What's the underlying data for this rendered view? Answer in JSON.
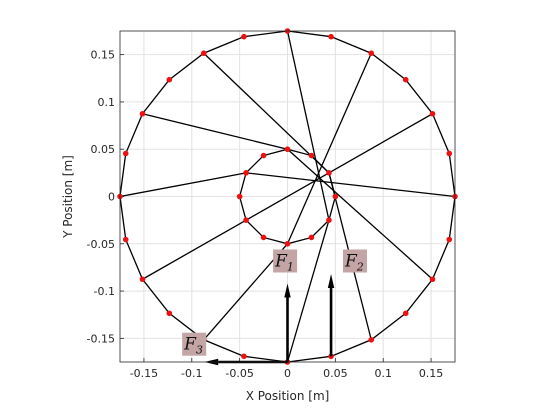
{
  "chart_data": {
    "type": "scatter",
    "title": "",
    "xlabel": "X Position [m]",
    "ylabel": "Y Position [m]",
    "xlim": [
      -0.175,
      0.175
    ],
    "ylim": [
      -0.175,
      0.175
    ],
    "grid": true,
    "x_ticks": [
      -0.15,
      -0.1,
      -0.05,
      0,
      0.05,
      0.1,
      0.15
    ],
    "x_tick_labels": [
      "-0.15",
      "-0.1",
      "-0.05",
      "0",
      "0.05",
      "0.1",
      "0.15"
    ],
    "y_ticks": [
      0.15,
      0.1,
      0.05,
      0,
      -0.05,
      -0.1,
      -0.15
    ],
    "y_tick_labels": [
      "0.15",
      "0.1",
      "0.05",
      "0",
      "-0.05",
      "-0.1",
      "-0.15"
    ],
    "outer_ring": {
      "x": [
        0,
        0.0455,
        0.0875,
        0.1235,
        0.1515,
        0.169,
        0.175,
        0.169,
        0.1515,
        0.1235,
        0.0875,
        0.0455,
        0,
        -0.0455,
        -0.0875,
        -0.1235,
        -0.1515,
        -0.169,
        -0.175,
        -0.169,
        -0.1515,
        -0.1235,
        -0.0875,
        -0.0455
      ],
      "y": [
        0.175,
        0.169,
        0.1515,
        0.1235,
        0.0875,
        0.0455,
        0,
        -0.0455,
        -0.0875,
        -0.1235,
        -0.1515,
        -0.169,
        -0.175,
        -0.169,
        -0.1515,
        -0.1235,
        -0.0875,
        -0.0455,
        0,
        0.0455,
        0.0875,
        0.1235,
        0.1515,
        0.169
      ]
    },
    "inner_ring": {
      "x": [
        0,
        0.025,
        0.0433,
        0.05,
        0.0433,
        0.025,
        0,
        -0.025,
        -0.0433,
        -0.05,
        -0.0433,
        -0.025
      ],
      "y": [
        0.05,
        0.0433,
        0.025,
        0,
        -0.025,
        -0.0433,
        -0.05,
        -0.0433,
        -0.025,
        0,
        0.025,
        0.0433
      ]
    },
    "spokes": [
      {
        "outer": 22,
        "inner": 2
      },
      {
        "outer": 20,
        "inner": 0
      },
      {
        "outer": 18,
        "inner": 10
      },
      {
        "outer": 16,
        "inner": 8
      },
      {
        "outer": 14,
        "inner": 6
      },
      {
        "outer": 12,
        "inner": 4
      },
      {
        "outer": 10,
        "inner": 2
      },
      {
        "outer": 8,
        "inner": 0
      },
      {
        "outer": 6,
        "inner": 10
      },
      {
        "outer": 4,
        "inner": 8
      },
      {
        "outer": 2,
        "inner": 6
      },
      {
        "outer": 0,
        "inner": 4
      }
    ],
    "forces": [
      {
        "label": "F",
        "sub": "1",
        "from": [
          0,
          -0.175
        ],
        "to": [
          0,
          -0.092
        ],
        "label_at": [
          -0.014,
          -0.074
        ]
      },
      {
        "label": "F",
        "sub": "2",
        "from": [
          0.0455,
          -0.169
        ],
        "to": [
          0.0455,
          -0.082
        ],
        "label_at": [
          0.059,
          -0.074
        ]
      },
      {
        "label": "F",
        "sub": "3",
        "from": [
          0,
          -0.175
        ],
        "to": [
          -0.087,
          -0.175
        ],
        "label_at": [
          -0.109,
          -0.162
        ]
      }
    ],
    "colors": {
      "node": "#ee1111",
      "line": "#000000",
      "label_box": "#c3a5a5",
      "grid": "#e2e2e2",
      "axis": "#262626"
    }
  }
}
